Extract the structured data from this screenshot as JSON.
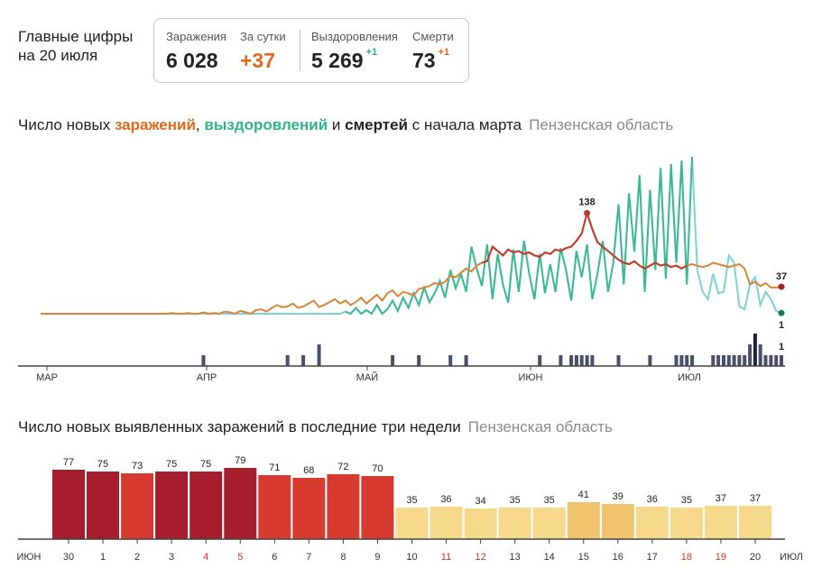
{
  "header": {
    "line1": "Главные цифры",
    "line2": "на 20 июля"
  },
  "stats": {
    "infections_label": "Заражения",
    "infections_value": "6 028",
    "day_label": "За сутки",
    "day_value": "+37",
    "recovered_label": "Выздоровления",
    "recovered_value": "5 269",
    "recovered_delta": "+1",
    "deaths_label": "Смерти",
    "deaths_value": "73",
    "deaths_delta": "+1"
  },
  "section1": {
    "prefix": "Число новых ",
    "infections": "заражений",
    "sep1": ", ",
    "recoveries": "выздоровлений",
    "sep2": " и ",
    "deaths": "смертей",
    "suffix": " с начала марта",
    "region": "Пензенская область"
  },
  "section2": {
    "title": "Число новых выявленных заражений в последние три недели",
    "region": "Пензенская область"
  },
  "colors": {
    "infections": "#d9853b",
    "infections_peak": "#c0392b",
    "recoveries": "#24b07d",
    "recoveries_light": "#7fd1d9",
    "deaths": "#4a4f6b",
    "bar_dark": "#a61e2d",
    "bar_mid": "#d73a2e",
    "bar_light": "#f6d98a",
    "bar_orange": "#f0c36d"
  },
  "chart_data": [
    {
      "type": "line",
      "title": "Число новых заражений, выздоровлений и смертей с начала марта",
      "x_labels": [
        "МАР",
        "АПР",
        "МАЙ",
        "ИЮН",
        "ИЮЛ"
      ],
      "days": 142,
      "ylim": [
        0,
        220
      ],
      "annotations": {
        "infections_peak": "138",
        "infections_last": "37",
        "recoveries_last": "1",
        "deaths_last": "1"
      },
      "series": [
        {
          "name": "Заражения",
          "values": [
            0,
            0,
            0,
            0,
            0,
            0,
            0,
            0,
            0,
            0,
            0,
            0,
            0,
            0,
            0,
            0,
            0,
            0,
            0,
            0,
            0,
            0,
            0,
            0,
            0,
            1,
            0,
            0,
            1,
            0,
            0,
            2,
            0,
            1,
            0,
            3,
            2,
            0,
            4,
            2,
            0,
            5,
            6,
            3,
            8,
            12,
            9,
            10,
            14,
            8,
            10,
            14,
            18,
            9,
            12,
            16,
            20,
            14,
            18,
            12,
            16,
            22,
            14,
            20,
            26,
            18,
            28,
            32,
            24,
            30,
            28,
            25,
            34,
            36,
            38,
            42,
            40,
            44,
            52,
            50,
            56,
            62,
            58,
            66,
            70,
            72,
            92,
            86,
            80,
            88,
            84,
            86,
            82,
            84,
            80,
            78,
            84,
            82,
            88,
            86,
            90,
            92,
            100,
            110,
            138,
            116,
            98,
            92,
            86,
            80,
            74,
            70,
            68,
            72,
            66,
            62,
            66,
            70,
            66,
            68,
            64,
            66,
            62,
            66,
            68,
            66,
            64,
            66,
            70,
            68,
            66,
            64,
            66,
            68,
            62,
            40,
            44,
            38,
            42,
            36,
            36,
            37
          ]
        },
        {
          "name": "Выздоровления",
          "values": [
            0,
            0,
            0,
            0,
            0,
            0,
            0,
            0,
            0,
            0,
            0,
            0,
            0,
            0,
            0,
            0,
            0,
            0,
            0,
            0,
            0,
            0,
            0,
            0,
            0,
            0,
            0,
            0,
            0,
            0,
            0,
            0,
            0,
            0,
            0,
            0,
            0,
            0,
            0,
            0,
            0,
            0,
            0,
            0,
            0,
            0,
            0,
            0,
            0,
            0,
            0,
            0,
            0,
            0,
            0,
            0,
            0,
            0,
            3,
            0,
            8,
            0,
            5,
            0,
            12,
            0,
            6,
            18,
            4,
            22,
            8,
            28,
            12,
            36,
            16,
            28,
            45,
            22,
            60,
            35,
            55,
            30,
            92,
            62,
            38,
            95,
            20,
            82,
            40,
            15,
            88,
            30,
            100,
            55,
            20,
            82,
            28,
            68,
            30,
            90,
            60,
            18,
            86,
            50,
            95,
            20,
            55,
            100,
            30,
            70,
            150,
            40,
            165,
            85,
            190,
            30,
            170,
            60,
            200,
            48,
            205,
            70,
            210,
            40,
            215,
            60,
            30,
            20,
            55,
            28,
            30,
            80,
            70,
            10,
            6,
            40,
            50,
            12,
            30,
            20,
            4,
            1
          ]
        },
        {
          "name": "Смерти",
          "values": [
            0,
            0,
            0,
            0,
            0,
            0,
            0,
            0,
            0,
            0,
            0,
            0,
            0,
            0,
            0,
            0,
            0,
            0,
            0,
            0,
            0,
            0,
            0,
            0,
            0,
            0,
            0,
            0,
            0,
            0,
            0,
            1,
            0,
            0,
            0,
            0,
            0,
            0,
            0,
            0,
            0,
            0,
            0,
            0,
            0,
            0,
            0,
            1,
            0,
            0,
            1,
            0,
            0,
            2,
            0,
            0,
            0,
            0,
            0,
            0,
            0,
            0,
            0,
            0,
            0,
            0,
            0,
            1,
            0,
            0,
            0,
            0,
            1,
            0,
            0,
            0,
            0,
            0,
            1,
            0,
            0,
            1,
            0,
            0,
            0,
            0,
            0,
            0,
            0,
            0,
            0,
            0,
            0,
            0,
            0,
            1,
            0,
            0,
            0,
            1,
            0,
            1,
            1,
            1,
            1,
            1,
            0,
            0,
            0,
            0,
            1,
            0,
            0,
            0,
            0,
            0,
            1,
            0,
            0,
            0,
            0,
            1,
            1,
            1,
            1,
            0,
            0,
            0,
            1,
            1,
            1,
            1,
            1,
            1,
            1,
            2,
            3,
            2,
            1,
            1,
            1,
            1
          ]
        }
      ]
    },
    {
      "type": "bar",
      "title": "Число новых выявленных заражений в последние три недели",
      "categories": [
        "30",
        "1",
        "2",
        "3",
        "4",
        "5",
        "6",
        "7",
        "8",
        "9",
        "10",
        "11",
        "12",
        "13",
        "14",
        "15",
        "16",
        "17",
        "18",
        "19",
        "20"
      ],
      "values": [
        77,
        75,
        73,
        75,
        75,
        79,
        71,
        68,
        72,
        70,
        35,
        36,
        34,
        35,
        35,
        41,
        39,
        36,
        35,
        37,
        37
      ],
      "weekend_categories": [
        "4",
        "5",
        "11",
        "12",
        "18",
        "19"
      ],
      "month_start_label": "ИЮН",
      "month_end_label": "ИЮЛ",
      "ylim": [
        0,
        80
      ]
    }
  ]
}
